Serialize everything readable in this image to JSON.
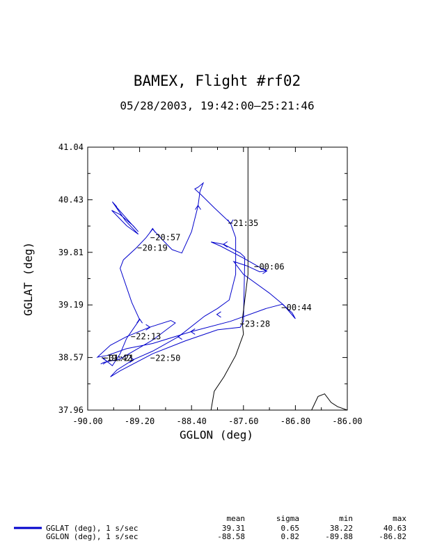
{
  "chart_data": {
    "type": "line",
    "title": "BAMEX, Flight #rf02",
    "subtitle": "05/28/2003, 19:42:00–25:21:46",
    "xlabel": "GGLON (deg)",
    "ylabel": "GGLAT (deg)",
    "xlim": [
      -90.0,
      -86.0
    ],
    "ylim": [
      37.96,
      41.04
    ],
    "x_ticks": [
      "-90.00",
      "-89.20",
      "-88.40",
      "-87.60",
      "-86.80",
      "-86.00"
    ],
    "y_ticks": [
      "37.96",
      "38.57",
      "39.19",
      "39.81",
      "40.43",
      "41.04"
    ],
    "grid": false,
    "series": [
      {
        "name": "GGLAT (deg), 1 s/sec",
        "color": "#0000cc",
        "points": [
          [
            -89.78,
            38.58
          ],
          [
            -89.62,
            38.48
          ],
          [
            -89.5,
            38.62
          ],
          [
            -89.4,
            38.8
          ],
          [
            -89.2,
            39.02
          ],
          [
            -89.32,
            39.22
          ],
          [
            -89.5,
            39.62
          ],
          [
            -89.45,
            39.72
          ],
          [
            -89.25,
            39.86
          ],
          [
            -89.1,
            39.98
          ],
          [
            -89.0,
            40.08
          ],
          [
            -88.88,
            39.98
          ],
          [
            -88.7,
            39.84
          ],
          [
            -88.55,
            39.8
          ],
          [
            -88.4,
            40.05
          ],
          [
            -88.3,
            40.35
          ],
          [
            -88.27,
            40.52
          ],
          [
            -88.22,
            40.62
          ],
          [
            -88.3,
            40.57
          ],
          [
            -88.35,
            40.55
          ],
          [
            -88.25,
            40.48
          ],
          [
            -88.05,
            40.33
          ],
          [
            -87.8,
            40.15
          ],
          [
            -87.72,
            39.98
          ],
          [
            -87.72,
            39.55
          ],
          [
            -87.82,
            39.25
          ],
          [
            -88.0,
            39.15
          ],
          [
            -88.2,
            39.06
          ],
          [
            -88.6,
            38.82
          ],
          [
            -89.0,
            38.65
          ],
          [
            -89.3,
            38.55
          ],
          [
            -89.55,
            38.43
          ],
          [
            -89.65,
            38.35
          ],
          [
            -89.5,
            38.42
          ],
          [
            -89.0,
            38.62
          ],
          [
            -88.5,
            38.77
          ],
          [
            -88.0,
            38.9
          ],
          [
            -87.65,
            38.93
          ],
          [
            -87.6,
            39.0
          ],
          [
            -87.58,
            39.75
          ],
          [
            -87.65,
            39.8
          ],
          [
            -87.9,
            39.9
          ],
          [
            -88.1,
            39.93
          ],
          [
            -87.95,
            39.88
          ],
          [
            -87.6,
            39.74
          ],
          [
            -87.25,
            39.59
          ],
          [
            -87.35,
            39.58
          ],
          [
            -87.55,
            39.65
          ],
          [
            -87.75,
            39.7
          ],
          [
            -87.6,
            39.55
          ],
          [
            -87.2,
            39.33
          ],
          [
            -86.98,
            39.19
          ],
          [
            -86.8,
            39.03
          ],
          [
            -86.85,
            39.1
          ],
          [
            -87.0,
            39.2
          ],
          [
            -87.25,
            39.15
          ],
          [
            -87.8,
            39.0
          ],
          [
            -88.4,
            38.88
          ],
          [
            -89.0,
            38.74
          ],
          [
            -89.4,
            38.68
          ],
          [
            -89.7,
            38.6
          ],
          [
            -89.85,
            38.58
          ],
          [
            -89.65,
            38.72
          ],
          [
            -89.4,
            38.82
          ],
          [
            -89.05,
            38.93
          ],
          [
            -88.72,
            39.01
          ],
          [
            -88.65,
            38.98
          ],
          [
            -89.0,
            38.78
          ],
          [
            -89.5,
            38.56
          ],
          [
            -89.75,
            38.52
          ],
          [
            -89.8,
            38.5
          ]
        ]
      },
      {
        "name": "GGLON (deg), 1 s/sec",
        "color": "#0000cc",
        "points": [
          [
            -89.57,
            40.35
          ],
          [
            -89.35,
            40.16
          ],
          [
            -89.22,
            40.05
          ],
          [
            -89.3,
            40.12
          ],
          [
            -89.5,
            40.25
          ],
          [
            -89.63,
            40.3
          ],
          [
            -89.4,
            40.12
          ],
          [
            -89.22,
            40.02
          ],
          [
            -89.42,
            40.18
          ],
          [
            -89.62,
            40.4
          ],
          [
            -89.55,
            40.34
          ]
        ]
      },
      {
        "name": "",
        "color": "#000000",
        "points": [
          [
            -87.53,
            41.04
          ],
          [
            -87.53,
            39.55
          ],
          [
            -87.58,
            39.25
          ],
          [
            -87.62,
            39.0
          ],
          [
            -87.6,
            38.85
          ],
          [
            -87.72,
            38.6
          ],
          [
            -87.9,
            38.35
          ],
          [
            -88.05,
            38.18
          ],
          [
            -88.1,
            37.96
          ]
        ]
      },
      {
        "name": "",
        "color": "#000000",
        "points": [
          [
            -86.55,
            37.96
          ],
          [
            -86.45,
            38.12
          ],
          [
            -86.35,
            38.15
          ],
          [
            -86.25,
            38.05
          ],
          [
            -86.15,
            38.0
          ],
          [
            -86.0,
            37.96
          ]
        ]
      }
    ],
    "arrows": [
      {
        "x": -89.71,
        "y": 38.53,
        "dir": "right"
      },
      {
        "x": -89.2,
        "y": 39.02,
        "dir": "up"
      },
      {
        "x": -89.0,
        "y": 40.08,
        "dir": "up"
      },
      {
        "x": -88.3,
        "y": 40.35,
        "dir": "up"
      },
      {
        "x": -87.8,
        "y": 40.15,
        "dir": "down"
      },
      {
        "x": -87.9,
        "y": 39.9,
        "dir": "left"
      },
      {
        "x": -87.25,
        "y": 39.59,
        "dir": "right"
      },
      {
        "x": -88.6,
        "y": 38.82,
        "dir": "left"
      },
      {
        "x": -88.4,
        "y": 38.88,
        "dir": "left"
      },
      {
        "x": -89.05,
        "y": 38.93,
        "dir": "right"
      },
      {
        "x": -89.3,
        "y": 38.55,
        "dir": "right"
      },
      {
        "x": -88.0,
        "y": 39.08,
        "dir": "left"
      }
    ],
    "annotations": [
      {
        "label": "19:42",
        "x": -89.75,
        "y": 38.57
      },
      {
        "label": "01:21",
        "x": -89.72,
        "y": 38.57
      },
      {
        "label": "20:19",
        "x": -89.2,
        "y": 39.86
      },
      {
        "label": "20:57",
        "x": -89.0,
        "y": 39.98
      },
      {
        "label": "21:35",
        "x": -87.8,
        "y": 40.15
      },
      {
        "label": "22:13",
        "x": -89.3,
        "y": 38.82
      },
      {
        "label": "22:50",
        "x": -89.0,
        "y": 38.57
      },
      {
        "label": "23:28",
        "x": -87.62,
        "y": 38.97
      },
      {
        "label": "00:06",
        "x": -87.4,
        "y": 39.64
      },
      {
        "label": "00:44",
        "x": -86.98,
        "y": 39.16
      }
    ]
  },
  "stats": {
    "headers": [
      "mean",
      "sigma",
      "min",
      "max"
    ],
    "rows": [
      {
        "label": "GGLAT (deg), 1 s/sec",
        "values": [
          "39.31",
          "0.65",
          "38.22",
          "40.63"
        ],
        "color": "#0000cc"
      },
      {
        "label": "GGLON (deg), 1 s/sec",
        "values": [
          "-88.58",
          "0.82",
          "-89.88",
          "-86.82"
        ],
        "color": ""
      }
    ]
  }
}
